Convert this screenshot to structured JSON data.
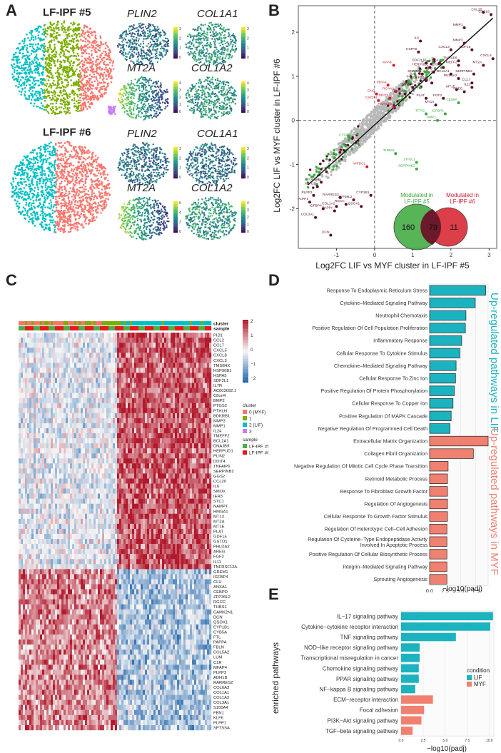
{
  "figure": {
    "panel_labels": [
      "A",
      "B",
      "C",
      "D",
      "E"
    ]
  },
  "panel_a": {
    "sample1_title": "LF-IPF #5",
    "sample2_title": "LF-IPF #6",
    "genes": [
      "PLIN2",
      "COL1A1",
      "MT2A",
      "COL1A2"
    ],
    "cluster_colors": {
      "c0": "#F8766D",
      "c1": "#7CAE00",
      "c2": "#00BFC4",
      "c3": "#C77CFF"
    },
    "scale_ticks": {
      "s5_plin2": [
        "3",
        "2",
        "1",
        "0"
      ],
      "s5_col1a1": [
        "3",
        "2",
        "1",
        "0"
      ],
      "s5_mt2a": [
        "4",
        "3",
        "2",
        "1",
        "0"
      ],
      "s5_col1a2": [
        "4",
        "3",
        "2",
        "1",
        "0"
      ],
      "s6_plin2": [
        "3",
        "2",
        "1",
        "0"
      ],
      "s6_col1a1": [
        "3",
        "2",
        "1",
        "0"
      ],
      "s6_mt2a": [
        "6",
        "4",
        "2",
        "0"
      ],
      "s6_col1a2": [
        "4",
        "3",
        "2",
        "1",
        "0"
      ]
    },
    "viridis": [
      "#440154",
      "#3B528B",
      "#21908C",
      "#5DC863",
      "#FDE725"
    ]
  },
  "panel_b": {
    "chart_data": {
      "type": "scatter",
      "xlabel": "Log2FC LIF vs MYF cluster in LF-IPF #5",
      "ylabel": "Log2FC LIF vs MYF cluster in LF-IPF #6",
      "xlim": [
        -2,
        3.2
      ],
      "ylim": [
        -2.9,
        2.6
      ],
      "xticks": [
        "-1",
        "0",
        "1",
        "2",
        "3"
      ],
      "yticks": [
        "-2",
        "-1",
        "0",
        "1",
        "2"
      ],
      "points": [
        {
          "label": "CCL20",
          "x": 2.85,
          "y": 2.45,
          "cls": "both"
        },
        {
          "label": "CXCL8",
          "x": 3.05,
          "y": 2.4,
          "cls": "both"
        },
        {
          "label": "MMP1",
          "x": 2.35,
          "y": 2.1,
          "cls": "both"
        },
        {
          "label": "IL6",
          "x": 1.2,
          "y": 1.8,
          "cls": "both"
        },
        {
          "label": "MMP3",
          "x": 2.35,
          "y": 1.75,
          "cls": "both"
        },
        {
          "label": "HSPA5",
          "x": 1.15,
          "y": 1.55,
          "cls": "both"
        },
        {
          "label": "CXCL3",
          "x": 2.0,
          "y": 1.6,
          "cls": "both"
        },
        {
          "label": "GDF15",
          "x": 2.55,
          "y": 1.6,
          "cls": "both"
        },
        {
          "label": "CXCL5",
          "x": 3.1,
          "y": 1.4,
          "cls": "both"
        },
        {
          "label": "TNFAIP6",
          "x": 2.2,
          "y": 1.35,
          "cls": "both"
        },
        {
          "label": "SDF2L1",
          "x": 1.35,
          "y": 1.3,
          "cls": "both"
        },
        {
          "label": "IL24",
          "x": 1.7,
          "y": 1.3,
          "cls": "both"
        },
        {
          "label": "TMEFF2",
          "x": 2.2,
          "y": 1.25,
          "cls": "both"
        },
        {
          "label": "MT2A",
          "x": 2.85,
          "y": 1.25,
          "cls": "both"
        },
        {
          "label": "PTGS2",
          "x": 1.8,
          "y": 1.2,
          "cls": "both"
        },
        {
          "label": "HERPUD1",
          "x": 1.45,
          "y": 1.2,
          "cls": "both"
        },
        {
          "label": "MANF",
          "x": 0.5,
          "y": 1.25,
          "cls": "lf6"
        },
        {
          "label": "IER3",
          "x": 1.55,
          "y": 1.1,
          "cls": "both"
        },
        {
          "label": "DNAJB9",
          "x": 1.25,
          "y": 1.05,
          "cls": "both"
        },
        {
          "label": "BCL2A1",
          "x": 2.0,
          "y": 1.05,
          "cls": "both"
        },
        {
          "label": "SERPINB2",
          "x": 2.6,
          "y": 1.05,
          "cls": "both"
        },
        {
          "label": "CCL7",
          "x": 2.55,
          "y": 0.85,
          "cls": "both"
        },
        {
          "label": "IL11",
          "x": 2.55,
          "y": 0.75,
          "cls": "both"
        },
        {
          "label": "PHLDA2",
          "x": 2.2,
          "y": 0.95,
          "cls": "both"
        },
        {
          "label": "BDKRB1",
          "x": 1.35,
          "y": 0.9,
          "cls": "both"
        },
        {
          "label": "C8orf4",
          "x": 1.5,
          "y": 0.85,
          "cls": "both"
        },
        {
          "label": "MT1E",
          "x": 2.15,
          "y": 0.7,
          "cls": "both"
        },
        {
          "label": "AREG",
          "x": 2.35,
          "y": 0.65,
          "cls": "both"
        },
        {
          "label": "PDIA4",
          "x": 0.35,
          "y": 0.8,
          "cls": "lf6"
        },
        {
          "label": "DDIT4",
          "x": 1.0,
          "y": 0.75,
          "cls": "both"
        },
        {
          "label": "GNG",
          "x": 0.05,
          "y": 0.6,
          "cls": "lf6"
        },
        {
          "label": "RCAN1",
          "x": 0.55,
          "y": 0.65,
          "cls": "lf6"
        },
        {
          "label": "SMOX",
          "x": 0.8,
          "y": 0.6,
          "cls": "both"
        },
        {
          "label": "FGF2",
          "x": 1.8,
          "y": 0.5,
          "cls": "both"
        },
        {
          "label": "DDIT3",
          "x": 0.4,
          "y": 0.5,
          "cls": "lf6"
        },
        {
          "label": "CXCR4",
          "x": 0.1,
          "y": 0.45,
          "cls": "lf6"
        },
        {
          "label": "PLAT",
          "x": 1.35,
          "y": 0.5,
          "cls": "both"
        },
        {
          "label": "MT1X",
          "x": 1.6,
          "y": 0.35,
          "cls": "both"
        },
        {
          "label": "RNA5-8S",
          "x": 0.5,
          "y": 0.3,
          "cls": "lf6"
        },
        {
          "label": "CEMIP",
          "x": 2.2,
          "y": 0.4,
          "cls": "lf5"
        },
        {
          "label": "TFPI2",
          "x": 1.35,
          "y": 0.15,
          "cls": "lf5"
        },
        {
          "label": "IGFBP2",
          "x": 1.85,
          "y": 0.15,
          "cls": "lf5"
        },
        {
          "label": "TIMP1",
          "x": 1.65,
          "y": 0.0,
          "cls": "lf5"
        },
        {
          "label": "CTGF",
          "x": -0.65,
          "y": -0.4,
          "cls": "lf5"
        },
        {
          "label": "THBS2",
          "x": 0.55,
          "y": -0.75,
          "cls": "lf5"
        },
        {
          "label": "CHI3L1",
          "x": 1.1,
          "y": -0.95,
          "cls": "lf5"
        },
        {
          "label": "SERPINE2",
          "x": 1.1,
          "y": -1.1,
          "cls": "lf5"
        },
        {
          "label": "CAV1",
          "x": -1.05,
          "y": -0.85,
          "cls": "lf5"
        },
        {
          "label": "WFDC1",
          "x": -0.2,
          "y": -1.05,
          "cls": "lf6"
        },
        {
          "label": "COL1A1",
          "x": -1.4,
          "y": -1.4,
          "cls": "both"
        },
        {
          "label": "ADH1B",
          "x": -1.5,
          "y": -1.5,
          "cls": "both"
        },
        {
          "label": "PLPP3",
          "x": -1.6,
          "y": -1.7,
          "cls": "both"
        },
        {
          "label": "RARRES2",
          "x": -0.9,
          "y": -1.75,
          "cls": "both"
        },
        {
          "label": "CYP1B1",
          "x": -0.1,
          "y": -1.7,
          "cls": "both"
        },
        {
          "label": "ZFP36L2",
          "x": -0.55,
          "y": -1.8,
          "cls": "both"
        },
        {
          "label": "RGCC",
          "x": -0.75,
          "y": -1.9,
          "cls": "both"
        },
        {
          "label": "COL1A2",
          "x": -1.0,
          "y": -1.95,
          "cls": "both"
        },
        {
          "label": "IGFBP4",
          "x": -1.35,
          "y": -2.0,
          "cls": "both"
        },
        {
          "label": "PAPPA",
          "x": -1.05,
          "y": -2.05,
          "cls": "both"
        },
        {
          "label": "QSOX1",
          "x": -0.35,
          "y": -1.95,
          "cls": "both"
        },
        {
          "label": "PLPP1",
          "x": -1.7,
          "y": -1.85,
          "cls": "both"
        },
        {
          "label": "COL3A1",
          "x": -1.55,
          "y": -2.2,
          "cls": "both"
        },
        {
          "label": "DCN",
          "x": -1.15,
          "y": -2.6,
          "cls": "both"
        }
      ],
      "venn": {
        "label_a": "Modulated in",
        "label_a2": "LF-IPF #5",
        "label_b": "Modulated in",
        "label_b2": "LF-IPF #6",
        "only_a": "160",
        "both": "79",
        "only_b": "11"
      },
      "colors": {
        "both": "#5a0e2a",
        "lf5": "#3aa83a",
        "lf6": "#d01c2c",
        "ns": "#b8b8b8"
      }
    }
  },
  "panel_c": {
    "chart_data": {
      "type": "heatmap",
      "header_rows": [
        "cluster",
        "sample"
      ],
      "genes": [
        "PID1",
        "CCL2",
        "CCL7",
        "CXCL5",
        "CXCL8",
        "CXCL3",
        "TMSB4X",
        "HSP90B1",
        "HSPA5",
        "SDF2L1",
        "IL7R",
        "AC003092.1",
        "C8orf4",
        "BMP2",
        "PTGS2",
        "PTHLH",
        "BDKRB1",
        "MMP3",
        "MMP1",
        "IL24",
        "TMEFF2",
        "BCL2A1",
        "DNAJB9",
        "HERPUD1",
        "PLIN2",
        "DDIT4",
        "TNFAIP6",
        "SERPINB2",
        "GGS2",
        "CCL20",
        "IL6",
        "SMOX",
        "IER3",
        "STC1",
        "NAMPT",
        "HMGA1",
        "MT1X",
        "MT2A",
        "MT1E",
        "PLAT",
        "GDF15",
        "GSTO1",
        "PHLDA2",
        "AREG",
        "FGF2",
        "IL11",
        "TNFRSF12A",
        "GREM1",
        "IGFBP4",
        "CLU",
        "ANXA1",
        "CEBPD",
        "ZFP36L2",
        "RGCC",
        "THBS1",
        "CAMK2N1",
        "DCN",
        "QSOX1",
        "CYP1B1",
        "CYB5A",
        "FTL",
        "PAPPA",
        "FBLN",
        "COL5A2",
        "LUM",
        "C1R",
        "MFAP4",
        "PLPP3",
        "ADH1B",
        "RARRES2",
        "COL6A3",
        "COL1A1",
        "COL1A2",
        "COL3A1",
        "S100A4",
        "FBN1",
        "KLF6",
        "PLPP1",
        "SPTSSA"
      ],
      "scale": {
        "title": "",
        "ticks": [
          "2",
          "1",
          "0",
          "−1",
          "−2"
        ],
        "high": "#b2182b",
        "mid": "#f7f7f7",
        "low": "#2166ac"
      },
      "legend_cluster_title": "cluster",
      "legend_cluster": [
        {
          "label": "0 (MYF)",
          "color": "#F8766D"
        },
        {
          "label": "1",
          "color": "#7CAE00"
        },
        {
          "label": "2 (LIF)",
          "color": "#00BFC4"
        },
        {
          "label": "3",
          "color": "#C77CFF"
        }
      ],
      "legend_sample_title": "sample",
      "legend_sample": [
        {
          "label": "LF-IPF #5",
          "color": "#4DAF4A"
        },
        {
          "label": "LF-IPF #6",
          "color": "#E41A1C"
        }
      ]
    }
  },
  "panel_d": {
    "chart_data": {
      "type": "bar",
      "orientation": "horizontal",
      "xlabel": "−log10(padj)",
      "xticks": [
        "0.0",
        "2.5",
        "5.0",
        "7.5"
      ],
      "xlim": [
        0,
        9.5
      ],
      "up_lif_label": "Up-regulated pathways in LIF",
      "up_myf_label": "Up-regulated pathways in MYF",
      "lif_color": "#1bb3bf",
      "myf_color": "#f08070",
      "categories": [
        "Response To Endoplasmic Reticulum Stress",
        "Cytokine–Mediated Signaling Pathway",
        "Neutrophil Chemotaxis",
        "Positive Regulation Of Cell Population Proliferation",
        "Inflammatory Response",
        "Cellular Response To Cytokine Stimulus",
        "Chemokine–Mediated Signaling Pathway",
        "Cellular Response To Zinc Ion",
        "Positive Regulation Of Protein Phosphorylation",
        "Cellular Response To Copper Ion",
        "Positive Regulation Of MAPK Cascade",
        "Negative Regulation Of Programmed Cell Death",
        "Extracellular Matrix Organization",
        "Collagen Fibril Organization",
        "Negative Regulation Of Mitotic Cell Cycle Phase Transition",
        "Retinoid Metabolic Process",
        "Response To Fibroblast Growth Factor",
        "Regulation Of Angiogenesis",
        "Cellular Response To Growth Factor Stimulus",
        "Regulation Of Heterotypic Cell–Cell Adhesion",
        "Regulation Of Cysteine–Type Endopeptidase Activity",
        "Positive Regulation Of Cellular Biosynthetic Process",
        "Integrin–Mediated Signaling Pathway",
        "Sprouting Angiogenesis"
      ],
      "category_line2": {
        "20": "Involved In Apoptotic Process"
      },
      "values": [
        9.1,
        7.4,
        5.9,
        5.8,
        5.2,
        4.9,
        4.3,
        4.2,
        4.0,
        3.8,
        3.5,
        3.3,
        9.5,
        7.1,
        3.0,
        2.9,
        2.9,
        2.9,
        2.9,
        2.8,
        2.8,
        2.8,
        2.8,
        2.8
      ],
      "groups": [
        "LIF",
        "LIF",
        "LIF",
        "LIF",
        "LIF",
        "LIF",
        "LIF",
        "LIF",
        "LIF",
        "LIF",
        "LIF",
        "LIF",
        "MYF",
        "MYF",
        "MYF",
        "MYF",
        "MYF",
        "MYF",
        "MYF",
        "MYF",
        "MYF",
        "MYF",
        "MYF",
        "MYF"
      ]
    }
  },
  "panel_e": {
    "chart_data": {
      "type": "bar",
      "orientation": "horizontal",
      "ylabel": "enriched pathways",
      "xlabel": "−log10(padj)",
      "xticks": [
        "0.0",
        "2.5",
        "5.0",
        "7.5",
        "10.0"
      ],
      "xlim": [
        0,
        10.5
      ],
      "legend_title": "condition",
      "legend": [
        {
          "label": "LIF",
          "color": "#1bb3bf"
        },
        {
          "label": "MYF",
          "color": "#f08070"
        }
      ],
      "categories": [
        "IL−17 signaling pathway",
        "Cytokine−cytokine receptor interaction",
        "TNF signaling pathway",
        "NOD−like receptor signaling pathway",
        "Transcriptional misregulation in cancer",
        "Chemokine signaling pathway",
        "PPAR signaling pathway",
        "NF−kappa B signaling pathway",
        "ECM−receptor interaction",
        "Focal adhesion",
        "PI3K−Akt signaling pathway",
        "TGF−beta signaling pathway"
      ],
      "values": [
        10.4,
        10.1,
        6.2,
        2.1,
        2.1,
        2.0,
        2.0,
        1.6,
        3.6,
        2.6,
        2.3,
        1.3
      ],
      "groups": [
        "LIF",
        "LIF",
        "LIF",
        "LIF",
        "LIF",
        "LIF",
        "LIF",
        "LIF",
        "MYF",
        "MYF",
        "MYF",
        "MYF"
      ]
    }
  }
}
